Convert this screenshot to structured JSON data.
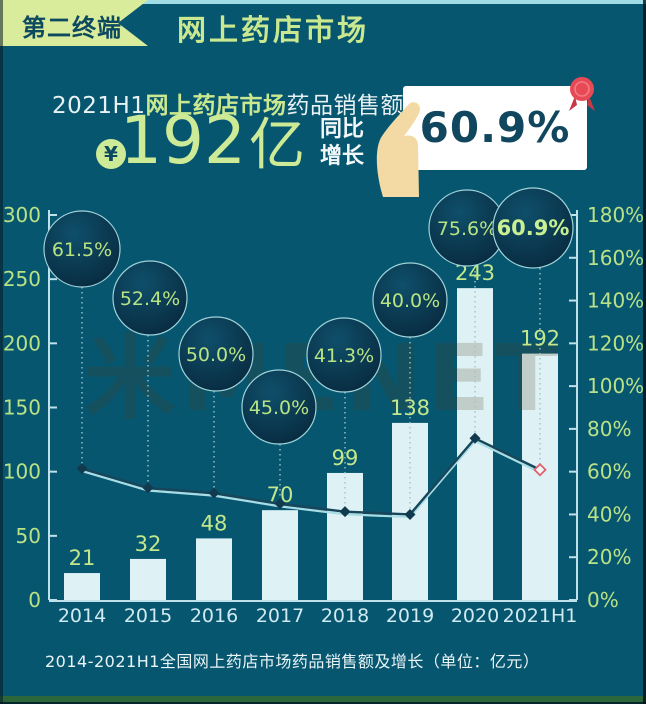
{
  "header": {
    "tag": "第二终端",
    "title": "网上药店市场"
  },
  "highlight": {
    "line1_prefix": "2021H1",
    "line1_market": "网上药店市场",
    "line1_suffix": "药品销售额达",
    "currency_symbol": "¥",
    "amount": "192",
    "amount_unit": "亿",
    "growth_label_line1": "同比",
    "growth_label_line2": "增长",
    "growth_value": "60.9%"
  },
  "chart_data": {
    "type": "bar",
    "subtype": "bar+line combo",
    "categories": [
      "2014",
      "2015",
      "2016",
      "2017",
      "2018",
      "2019",
      "2020",
      "2021H1"
    ],
    "series": [
      {
        "name": "药品销售额(亿元)",
        "type": "bar",
        "values": [
          21,
          32,
          48,
          70,
          99,
          138,
          243,
          192
        ]
      },
      {
        "name": "同比增长(%)",
        "type": "line",
        "values": [
          61.5,
          52.4,
          50.0,
          45.0,
          41.3,
          40.0,
          75.6,
          60.9
        ]
      }
    ],
    "bar_labels": [
      "21",
      "32",
      "48",
      "70",
      "99",
      "138",
      "243",
      "192"
    ],
    "growth_labels": [
      "61.5%",
      "52.4%",
      "50.0%",
      "45.0%",
      "41.3%",
      "40.0%",
      "75.6%",
      "60.9%"
    ],
    "left_axis": {
      "min": 0,
      "max": 300,
      "step": 50,
      "label_values": [
        300,
        250,
        200,
        150,
        100,
        50,
        0
      ]
    },
    "right_axis": {
      "min": 0,
      "max": 180,
      "step": 20,
      "label_values": [
        "180%",
        "160%",
        "140%",
        "120%",
        "100%",
        "80%",
        "60%",
        "40%",
        "20%",
        "0%"
      ]
    },
    "grid": false,
    "legend": "none",
    "highlight_last_point": true,
    "watermark": "米MENET",
    "caption": "2014-2021H1全国网上药店市场药品销售额及增长（单位：亿元）"
  },
  "colors": {
    "background": "#075670",
    "ribbon_bg": "#d9ec9b",
    "accent_green": "#c9e88f",
    "axis": "#bfe2ea",
    "bar": "#def2f6",
    "label_green": "#b9e185",
    "bubble_stroke": "#9fd3da",
    "line_dark": "#17465a",
    "line_light": "#a9dde6",
    "marker": "#123a4e",
    "marker_last": "#e2606e",
    "dash": "#9dc3ca",
    "card_text": "#10465e",
    "rosette_red": "#e84a55",
    "hand": "#f3d9a3",
    "bottom_strip_green": "#2c673c"
  }
}
